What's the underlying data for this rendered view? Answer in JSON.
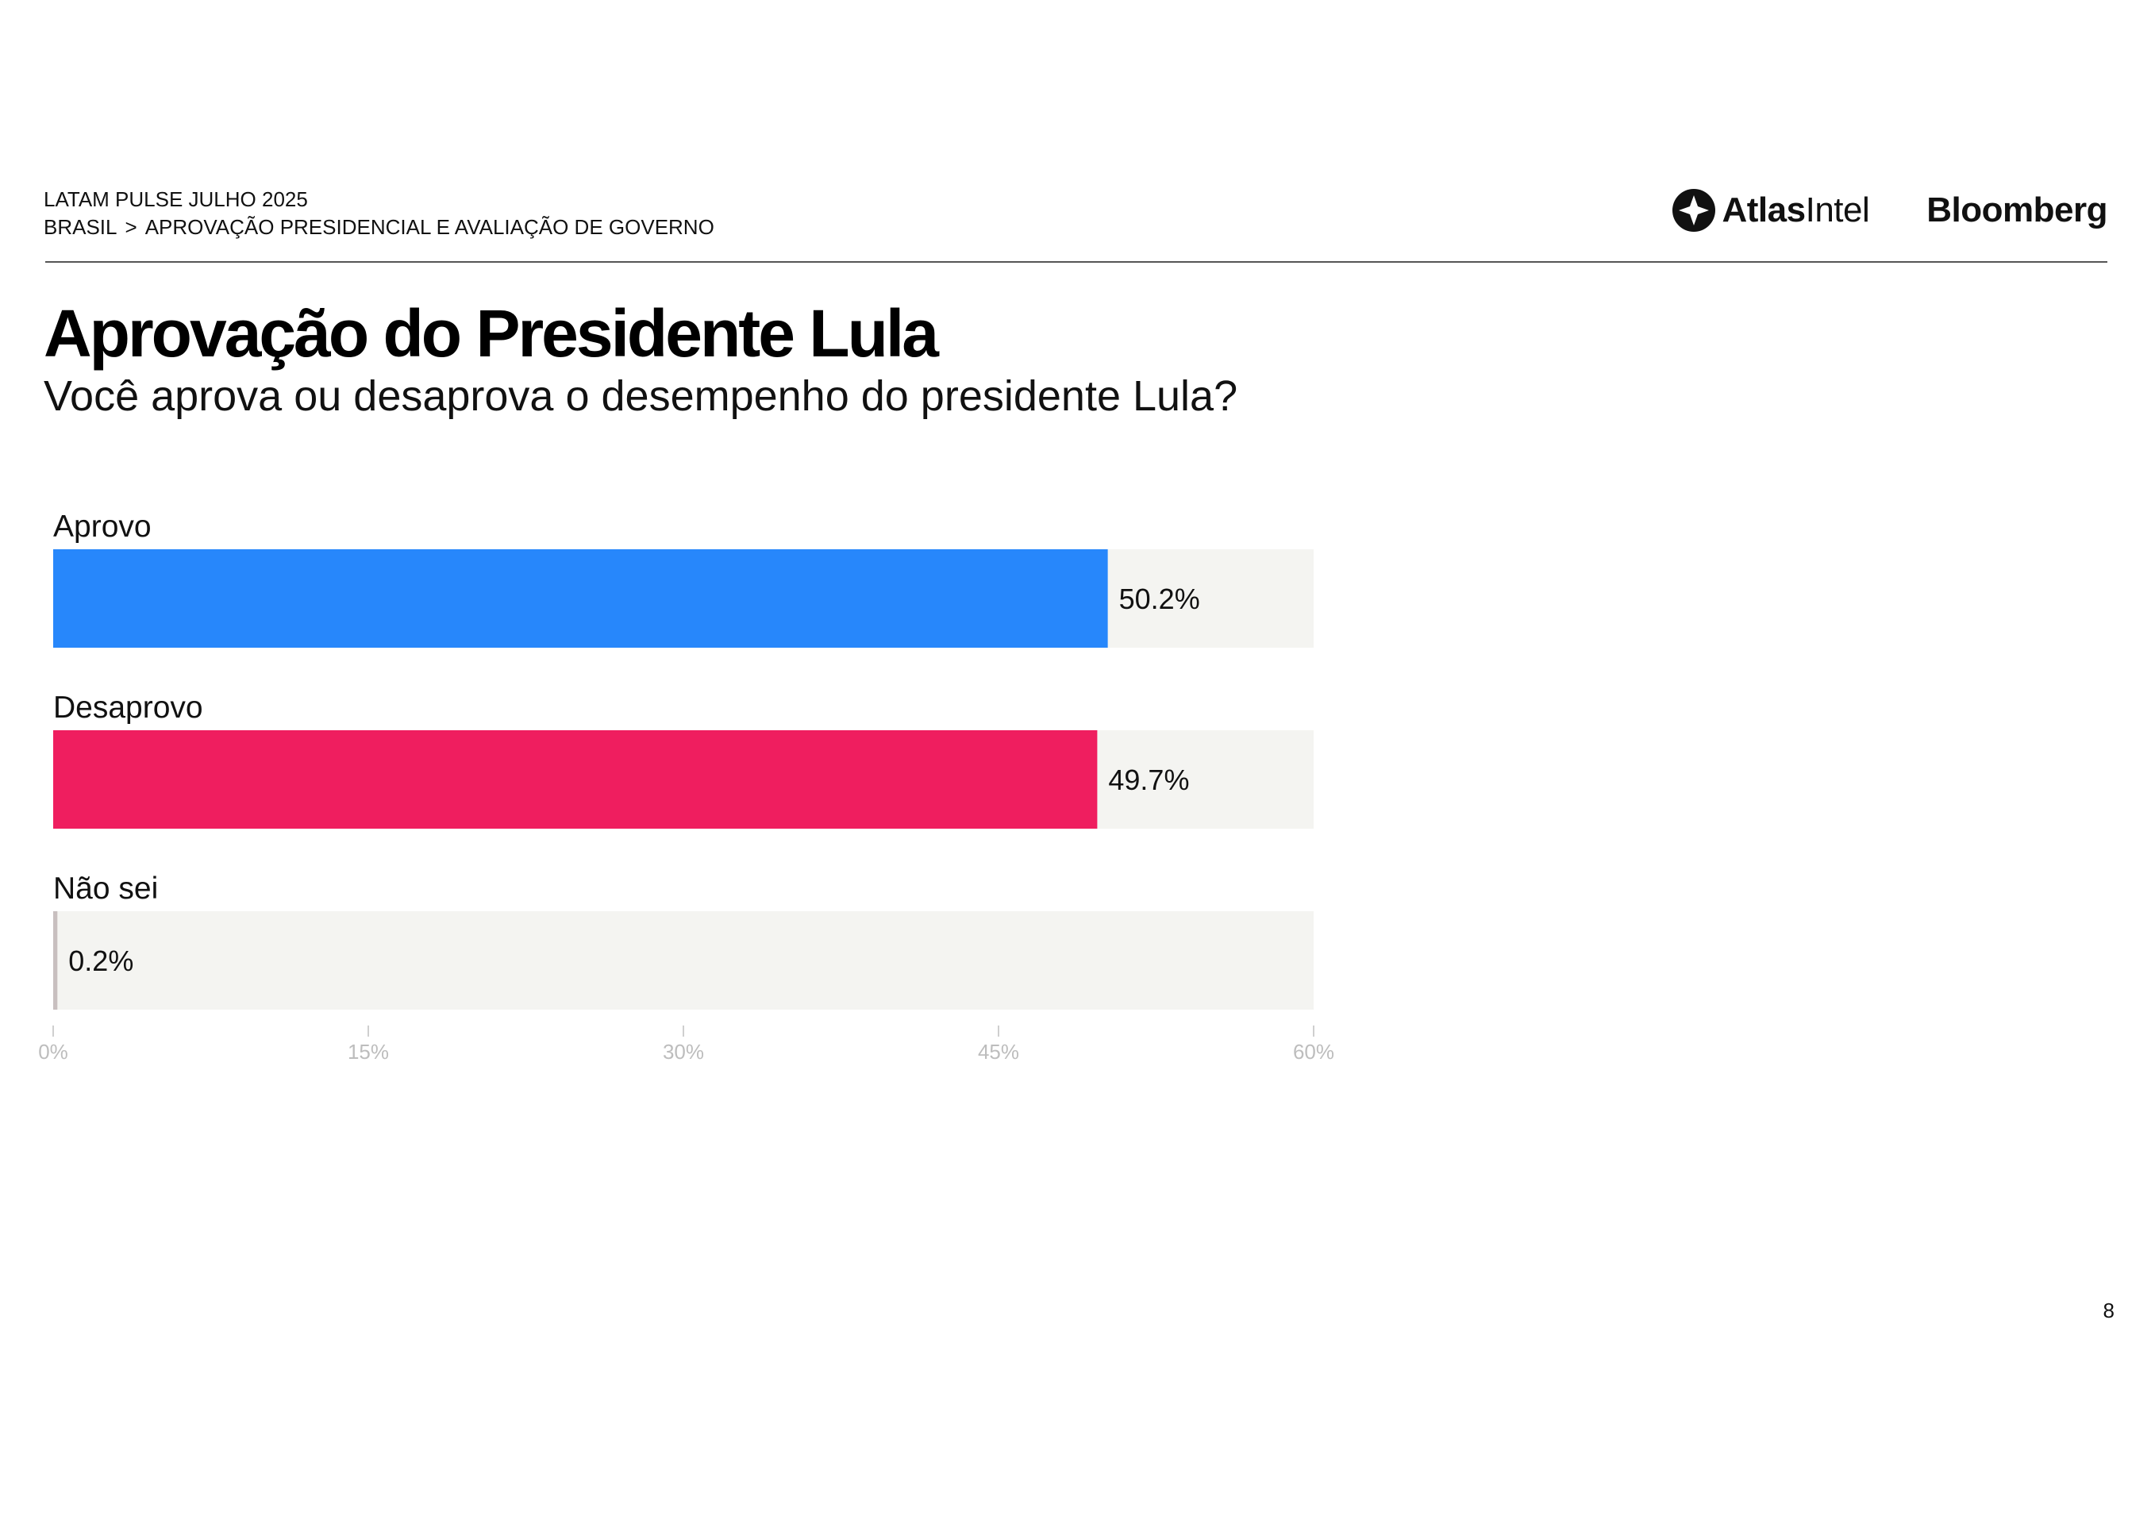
{
  "header": {
    "line1": "LATAM PULSE JULHO 2025",
    "crumb_root": "BRASIL",
    "crumb_separator": ">",
    "crumb_section": "APROVAÇÃO PRESIDENCIAL E AVALIAÇÃO DE GOVERNO"
  },
  "logos": {
    "atlas_bold": "Atlas",
    "atlas_light": "Intel",
    "bloomberg": "Bloomberg"
  },
  "page_number": "8",
  "chart_data": {
    "type": "bar",
    "orientation": "horizontal",
    "title": "Aprovação do Presidente Lula",
    "subtitle": "Você aprova ou desaprova o desempenho do presidente Lula?",
    "categories": [
      "Aprovo",
      "Desaprovo",
      "Não sei"
    ],
    "values": [
      50.2,
      49.7,
      0.2
    ],
    "value_labels": [
      "50.2%",
      "49.7%",
      "0.2%"
    ],
    "colors": [
      "#2787fb",
      "#ef1e5f",
      "#c8bfbf"
    ],
    "track_color": "#f4f4f1",
    "xlim": [
      0,
      60
    ],
    "xticks": [
      0,
      15,
      30,
      45,
      60
    ],
    "xtick_labels": [
      "0%",
      "15%",
      "30%",
      "45%",
      "60%"
    ],
    "grid": false,
    "legend": "none"
  }
}
